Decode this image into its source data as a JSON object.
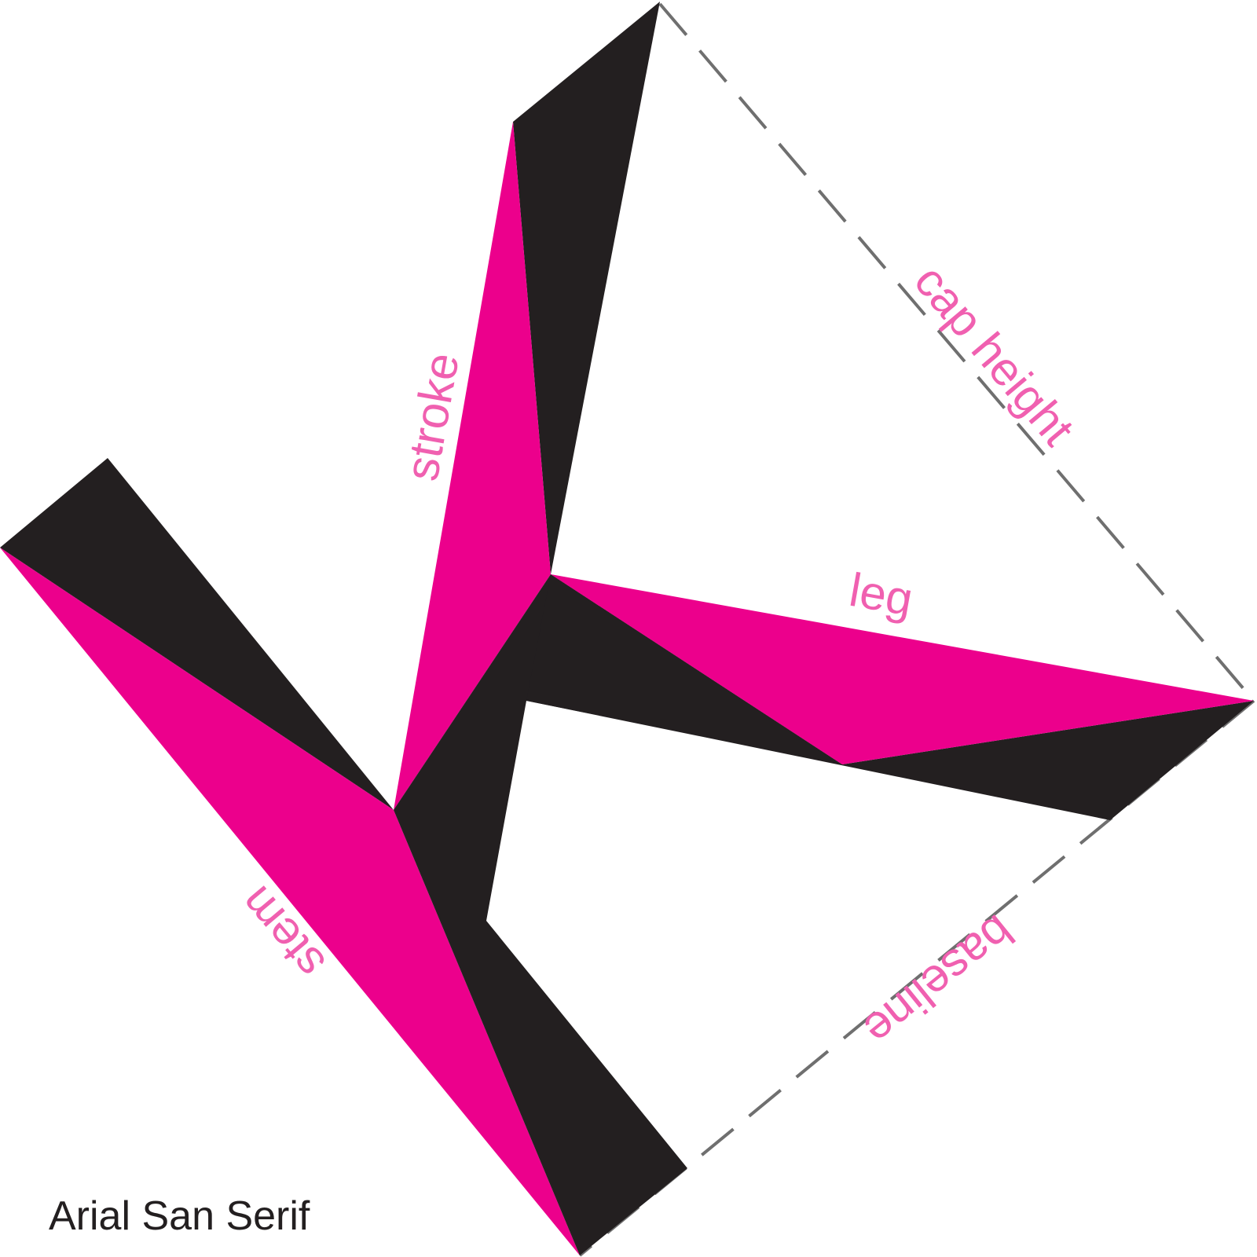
{
  "diagram": {
    "title": "Arial San Serif",
    "labels": {
      "stroke": "stroke",
      "cap_height": "cap height",
      "leg": "leg",
      "stem": "stem",
      "baseline": "baseline"
    },
    "colors": {
      "magenta": "#ec008c",
      "black": "#231f20",
      "label": "#f060b0",
      "guide": "#6f6f6f"
    }
  }
}
